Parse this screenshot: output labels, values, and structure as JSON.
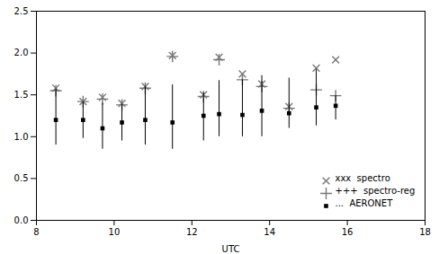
{
  "chart_data": {
    "type": "scatter",
    "xlabel": "UTC",
    "xlim": [
      8,
      18
    ],
    "ylim": [
      0.0,
      2.5
    ],
    "xticks": [
      8,
      10,
      12,
      14,
      16,
      18
    ],
    "yticks": [
      {
        "value": 0.0,
        "label": "0.0"
      },
      {
        "value": 0.5,
        "label": "0.5"
      },
      {
        "value": 1.0,
        "label": "1.0"
      },
      {
        "value": 1.5,
        "label": "1.5"
      },
      {
        "value": 2.0,
        "label": "2.0"
      },
      {
        "value": 2.5,
        "label": "2.5"
      }
    ],
    "grid": false,
    "legend": "lower right",
    "x": [
      8.5,
      9.2,
      9.7,
      10.2,
      10.8,
      11.5,
      12.3,
      12.7,
      13.3,
      13.8,
      14.5,
      15.2,
      15.7
    ],
    "series": [
      {
        "name": "xxx  spectro",
        "color": "#777777",
        "marker": "x",
        "values": [
          1.58,
          1.42,
          1.47,
          1.4,
          1.6,
          1.97,
          1.5,
          1.95,
          1.75,
          1.63,
          1.36,
          1.82,
          1.92
        ]
      },
      {
        "name": "+++  spectro-reg",
        "color": "#777777",
        "marker": "plus",
        "values": [
          1.55,
          1.42,
          1.45,
          1.38,
          1.58,
          1.96,
          1.48,
          1.92,
          1.68,
          1.6,
          1.34,
          1.56,
          1.49
        ]
      },
      {
        "name": "...  AERONET",
        "color": "#000000",
        "marker": "square",
        "values": [
          1.2,
          1.2,
          1.1,
          1.17,
          1.2,
          1.17,
          1.25,
          1.27,
          1.26,
          1.31,
          1.28,
          1.35,
          1.37
        ],
        "yerr_lo": [
          0.3,
          0.22,
          0.25,
          0.22,
          0.3,
          0.32,
          0.3,
          0.27,
          0.26,
          0.31,
          0.18,
          0.22,
          0.17
        ],
        "yerr_hi": [
          0.37,
          0.22,
          0.3,
          0.22,
          0.4,
          0.45,
          0.27,
          0.4,
          0.42,
          0.42,
          0.42,
          0.45,
          0.12
        ]
      }
    ]
  }
}
